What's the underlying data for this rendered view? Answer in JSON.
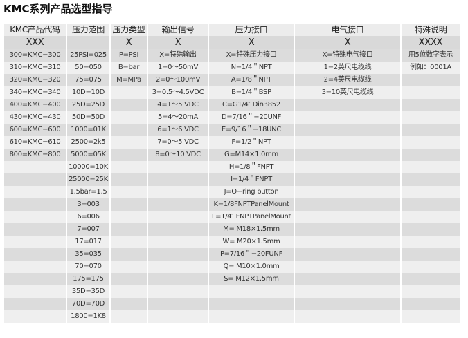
{
  "title": "KMC系列产品选型指导",
  "headers": [
    "KMC产品代码",
    "压力范围",
    "压力类型",
    "输出信号",
    "压力接口",
    "电气接口",
    "特殊说明"
  ],
  "codes": [
    "XXX",
    "",
    "X",
    "X",
    "X",
    "X",
    "XXXX"
  ],
  "columns": [
    [
      "300=KMC−300",
      "310=KMC−310",
      "320=KMC−320",
      "340=KMC−340",
      "400=KMC−400",
      "430=KMC−430",
      "600=KMC−600",
      "610=KMC−610",
      "800=KMC−800"
    ],
    [
      "25PSI=025",
      "50=050",
      "75=075",
      "10D=10D",
      "25D=25D",
      "50D=50D",
      "1000=01K",
      "2500=2k5",
      "5000=05K",
      "10000=10K",
      "25000=25K",
      "1.5bar=1.5",
      "3=003",
      "6=006",
      "7=007",
      "17=017",
      "35=035",
      "70=070",
      "175=175",
      "35D=35D",
      "70D=70D",
      "1800=1K8"
    ],
    [
      "P=PSI",
      "B=bar",
      "M=MPa"
    ],
    [
      "X=特殊输出",
      "1=0～50mV",
      "2=0～100mV",
      "3=0.5～4.5VDC",
      "4=1～5 VDC",
      "5=4～20mA",
      "6=1～6 VDC",
      "7=0～5 VDC",
      "8=0～10 VDC"
    ],
    [
      "X=特殊压力接口",
      "N=1/4＂NPT",
      "A=1/8＂NPT",
      "B=1/4＂BSP",
      "C=G1/4″ Din3852",
      "D=7/16＂−20UNF",
      "E=9/16＂−18UNC",
      "F=1/2＂NPT",
      "G=M14×1.0mm",
      "H=1/8＂FNPT",
      "I=1/4＂FNPT",
      "J=O−ring button",
      "K=1/8FNPTPanelMount",
      "L=1/4″ FNPTPanelMount",
      "M= M18×1.5mm",
      "W= M20×1.5mm",
      "P=7/16＂−20FUNF",
      "Q= M10×1.0mm",
      "S= M12×1.5mm"
    ],
    [
      "X=特殊电气接口",
      "1=2英尺电缆线",
      "2=4英尺电缆线",
      "3=10英尺电缆线"
    ],
    [
      "用5位数字表示",
      "例如：0001A"
    ]
  ]
}
